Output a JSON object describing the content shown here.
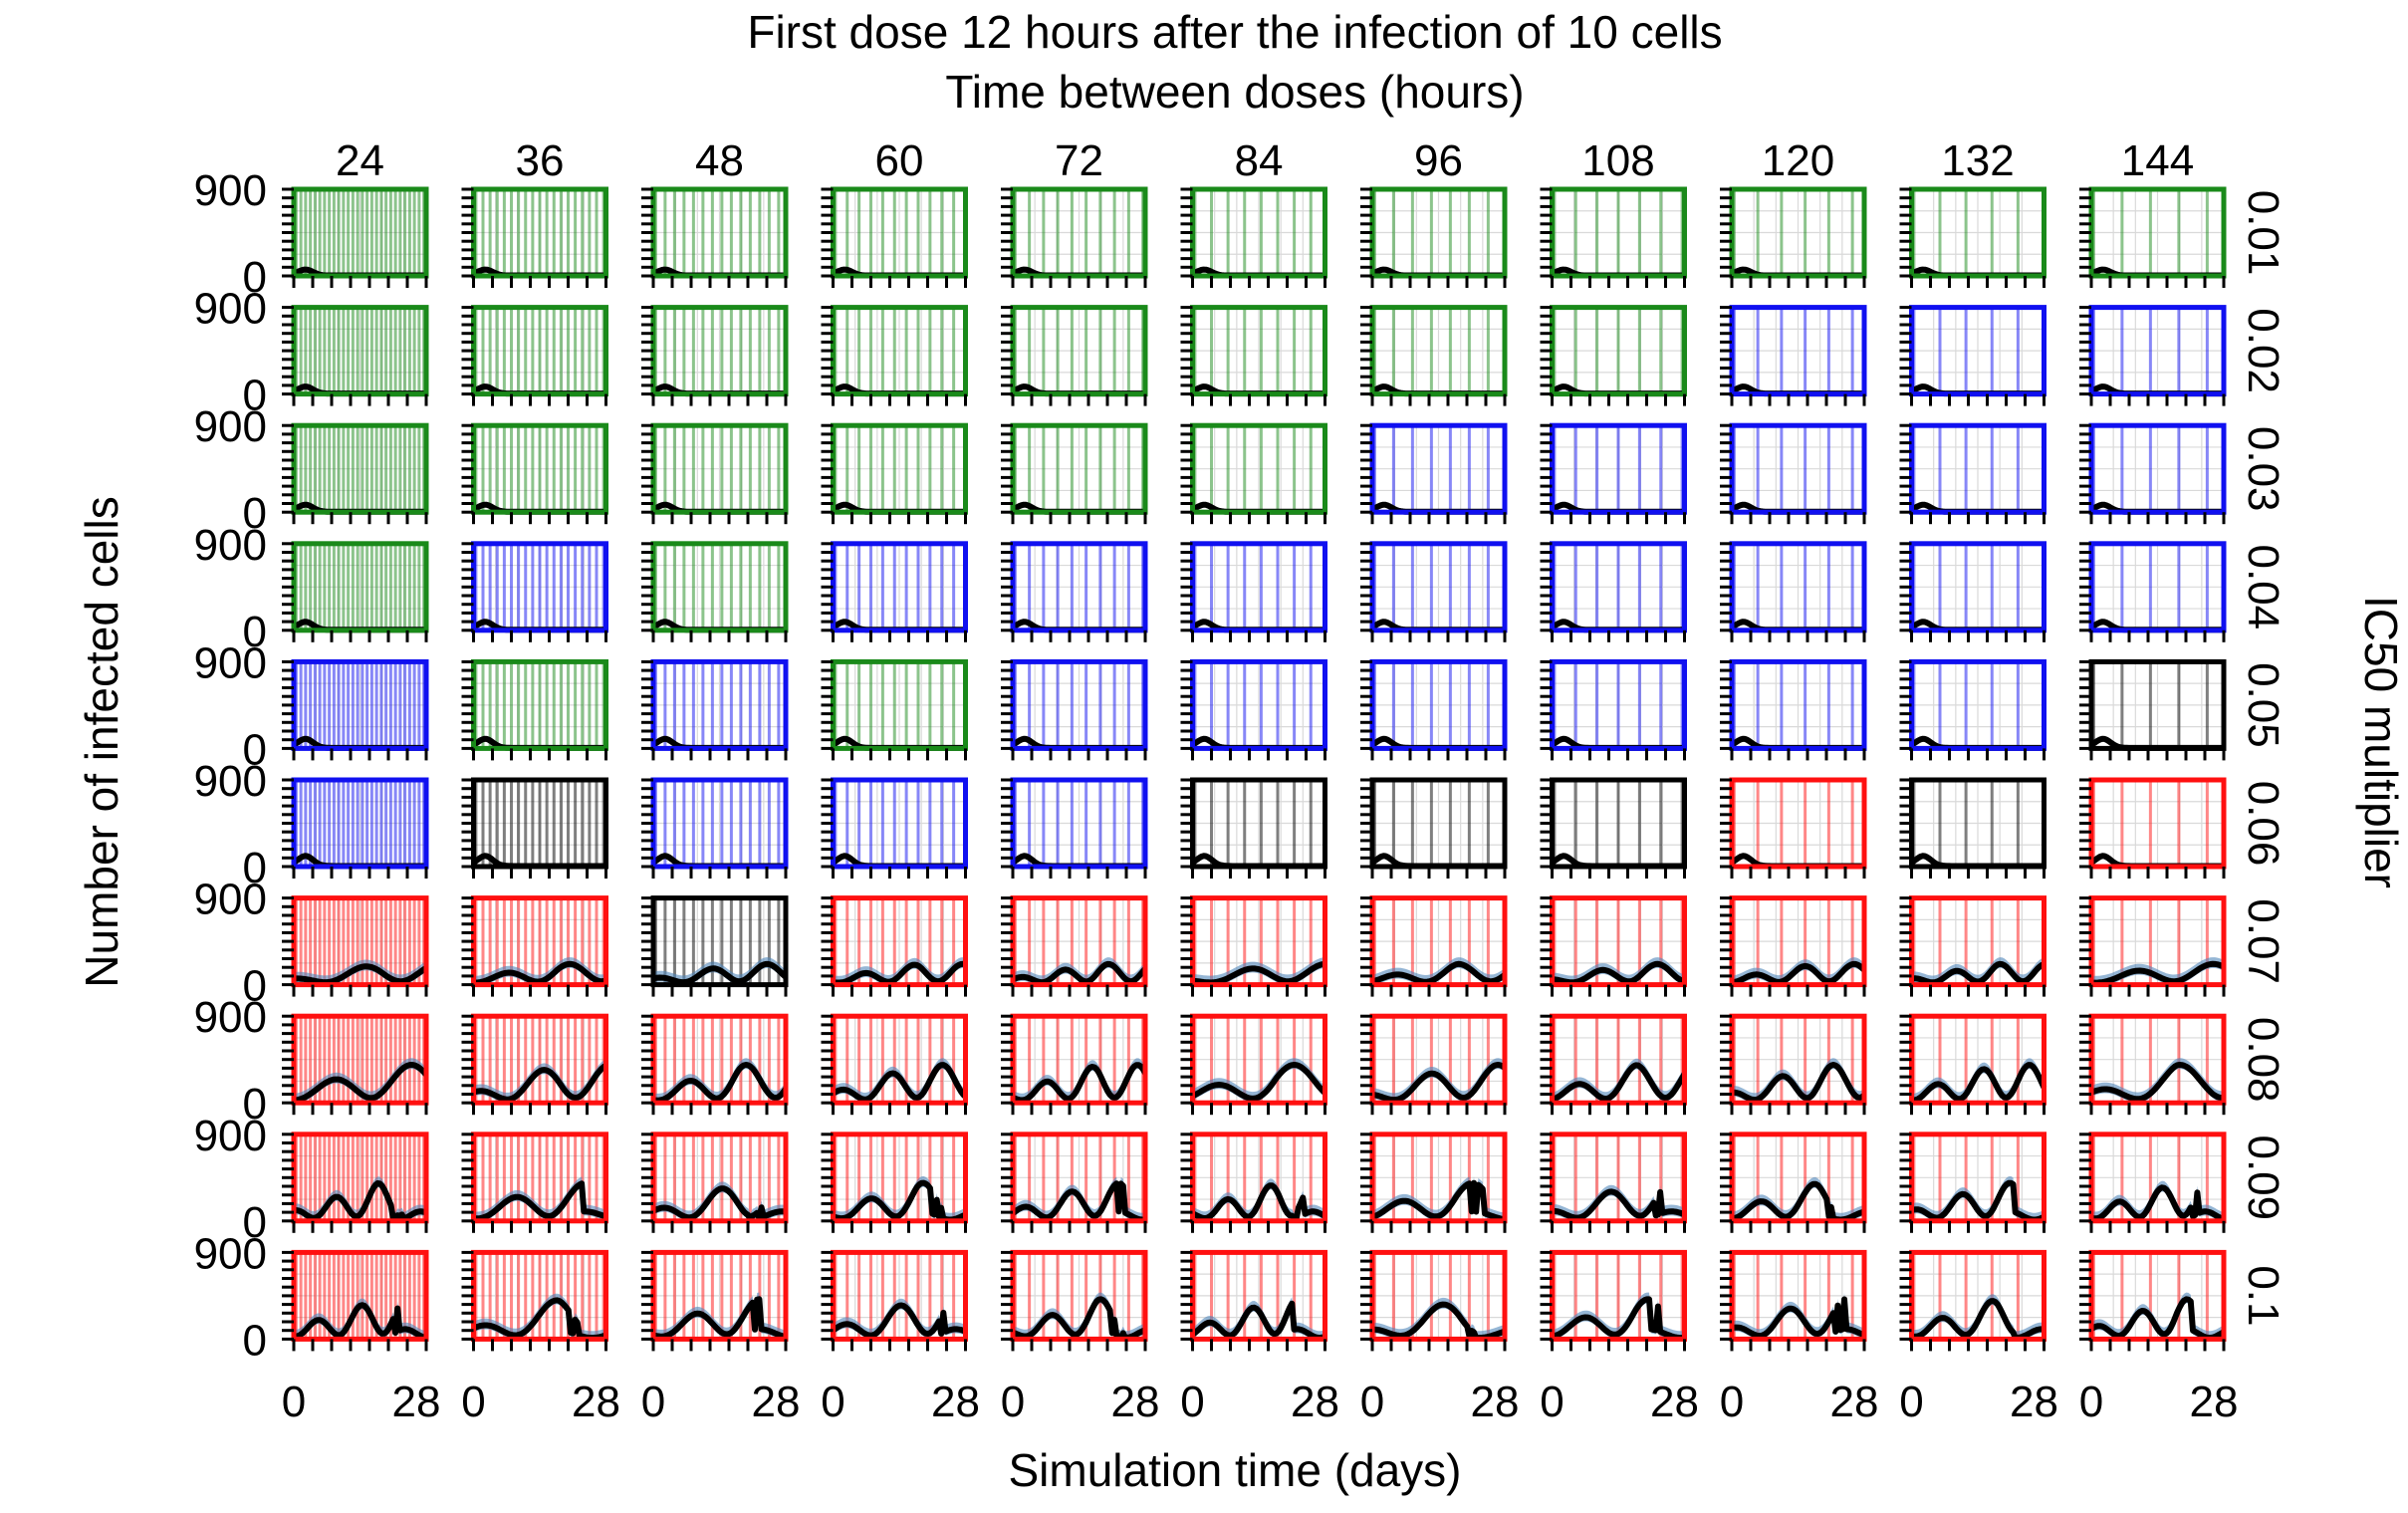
{
  "chart_data": {
    "type": "line",
    "layout": "small-multiples grid (10 rows x 11 columns)",
    "title_line1": "First dose 12 hours after the infection of 10 cells",
    "title_line2": "Time between doses (hours)",
    "xlabel": "Simulation time (days)",
    "ylabel": "Number of infected cells",
    "right_label": "IC50 multiplier",
    "columns": [
      "24",
      "36",
      "48",
      "60",
      "72",
      "84",
      "96",
      "108",
      "120",
      "132",
      "144"
    ],
    "rows": [
      "0.01",
      "0.02",
      "0.03",
      "0.04",
      "0.05",
      "0.06",
      "0.07",
      "0.08",
      "0.09",
      "0.1"
    ],
    "xlim": [
      0,
      28
    ],
    "ylim": [
      0,
      900
    ],
    "x_tick_labels": [
      "0",
      "28"
    ],
    "y_tick_labels": [
      "900",
      "0"
    ],
    "series_colors": {
      "mean": "#000000",
      "band": "#4f86b9"
    },
    "outcome_colors": {
      "G": "#1a8a1a",
      "B": "#1010f0",
      "K": "#000000",
      "R": "#ff1010"
    },
    "outcome_grid": [
      "GGGGGGGGGGG",
      "GGGGGGGGBBB",
      "GGGGGGBBBBB",
      "GBGBBBBBBBB",
      "BGBGBBBBBBK",
      "BKBBBKKKRKR",
      "RRKRRRRRRRR",
      "RRRRRRRRRRR",
      "RRRRRRRRRRR",
      "RRRRRRRRRRR"
    ],
    "peak_levels_per_row": [
      60,
      70,
      70,
      80,
      90,
      100,
      200,
      380,
      380,
      400
    ]
  }
}
